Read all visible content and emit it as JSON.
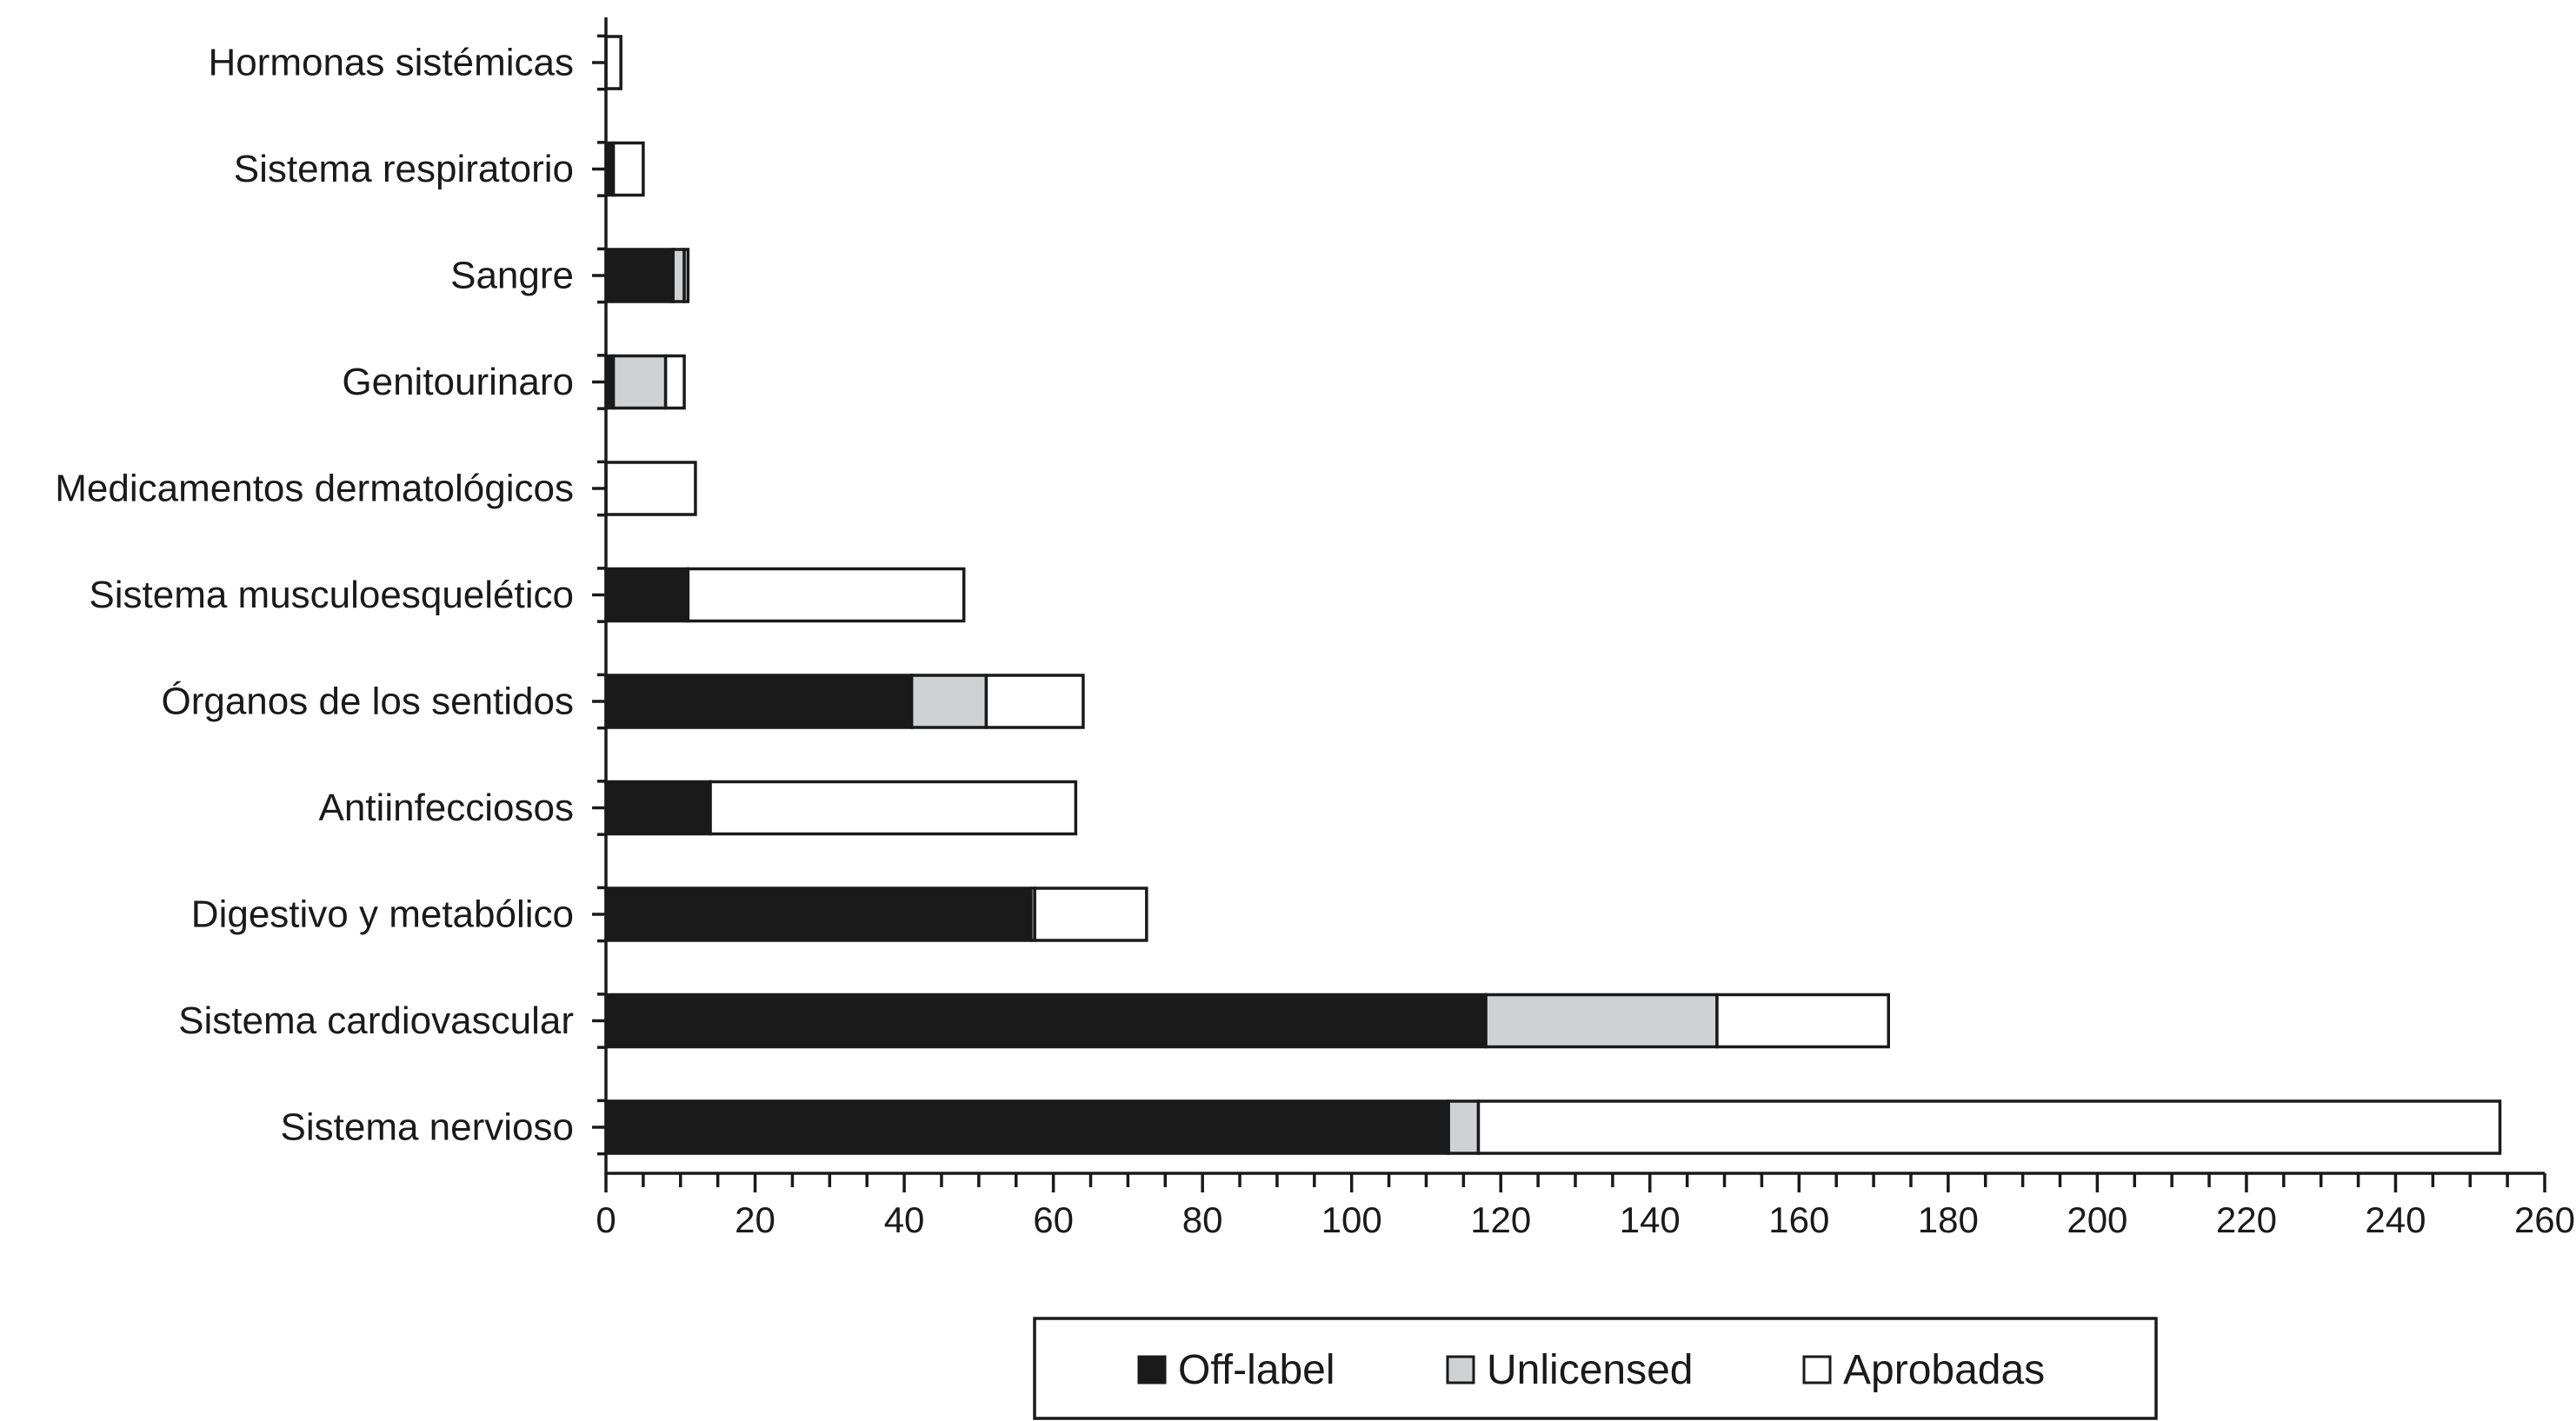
{
  "chart_data": {
    "type": "bar",
    "orientation": "horizontal",
    "stacked": true,
    "categories": [
      "Hormonas sistémicas",
      "Sistema respiratorio",
      "Sangre",
      "Genitourinaro",
      "Medicamentos dermatológicos",
      "Sistema musculoesquelético",
      "Órganos de los sentidos",
      "Antiinfecciosos",
      "Digestivo y metabólico",
      "Sistema cardiovascular",
      "Sistema nervioso"
    ],
    "series": [
      {
        "name": "Off-label",
        "color": "#1a1a1a",
        "values": [
          0,
          1,
          9,
          1,
          0,
          11,
          41,
          14,
          57,
          118,
          113
        ]
      },
      {
        "name": "Unlicensed",
        "color": "#d0d1d3",
        "values": [
          0,
          0,
          1.5,
          7,
          0,
          0,
          10,
          0,
          0.5,
          31,
          4
        ]
      },
      {
        "name": "Aprobadas",
        "color": "#ffffff",
        "values": [
          2,
          4,
          0.5,
          2.5,
          12,
          37,
          13,
          49,
          15,
          23,
          137
        ]
      }
    ],
    "xticks": [
      0,
      20,
      40,
      60,
      80,
      100,
      120,
      140,
      160,
      180,
      200,
      220,
      240,
      260
    ],
    "xlim": [
      0,
      260
    ],
    "minor_tick_step": 5,
    "title": "",
    "xlabel": "",
    "ylabel": "",
    "legend_position": "bottom",
    "grid": false
  }
}
